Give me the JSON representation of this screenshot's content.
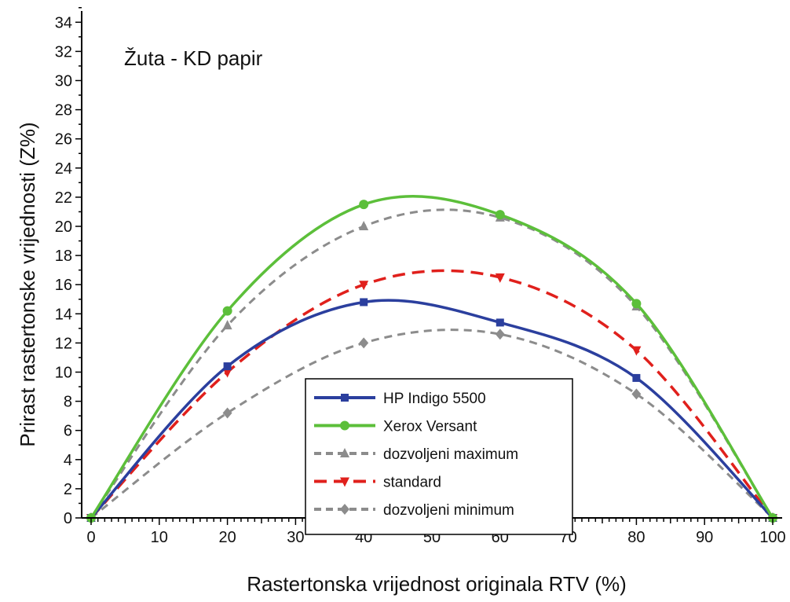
{
  "chart_data": {
    "type": "line",
    "annotation": "Žuta - KD papir",
    "xlabel": "Rastertonska vrijednost originala RTV (%)",
    "ylabel": "Prirast rastertonske vrijednosti (Z%)",
    "xlim": [
      0,
      100
    ],
    "ylim": [
      0,
      35
    ],
    "x_ticks": [
      0,
      10,
      20,
      30,
      40,
      50,
      60,
      70,
      80,
      90,
      100
    ],
    "y_ticks": [
      0,
      2,
      4,
      6,
      8,
      10,
      12,
      14,
      16,
      18,
      20,
      22,
      24,
      26,
      28,
      30,
      32,
      34
    ],
    "grid": false,
    "legend_position": "bottom-center",
    "series": [
      {
        "name": "HP Indigo 5500",
        "color": "#2b3f9e",
        "dash": "solid",
        "marker": "square",
        "x": [
          0,
          20,
          40,
          60,
          80,
          100
        ],
        "y": [
          0,
          10.4,
          14.8,
          13.4,
          9.6,
          0
        ]
      },
      {
        "name": "Xerox Versant",
        "color": "#5cbf3a",
        "dash": "solid",
        "marker": "circle",
        "x": [
          0,
          20,
          40,
          60,
          80,
          100
        ],
        "y": [
          0,
          14.2,
          21.5,
          20.8,
          14.7,
          0
        ]
      },
      {
        "name": "dozvoljeni maximum",
        "color": "#8c8c8c",
        "dash": "dashed",
        "marker": "triangle-up",
        "x": [
          0,
          20,
          40,
          60,
          80,
          100
        ],
        "y": [
          0,
          13.2,
          20.0,
          20.6,
          14.5,
          0
        ]
      },
      {
        "name": "standard",
        "color": "#e0201c",
        "dash": "dashed",
        "marker": "triangle-down",
        "x": [
          0,
          20,
          40,
          60,
          80,
          100
        ],
        "y": [
          0,
          10.0,
          16.0,
          16.5,
          11.5,
          0
        ]
      },
      {
        "name": "dozvoljeni minimum",
        "color": "#8c8c8c",
        "dash": "dashed",
        "marker": "diamond",
        "x": [
          0,
          20,
          40,
          60,
          80,
          100
        ],
        "y": [
          0,
          7.2,
          12.0,
          12.6,
          8.5,
          0
        ]
      }
    ]
  }
}
